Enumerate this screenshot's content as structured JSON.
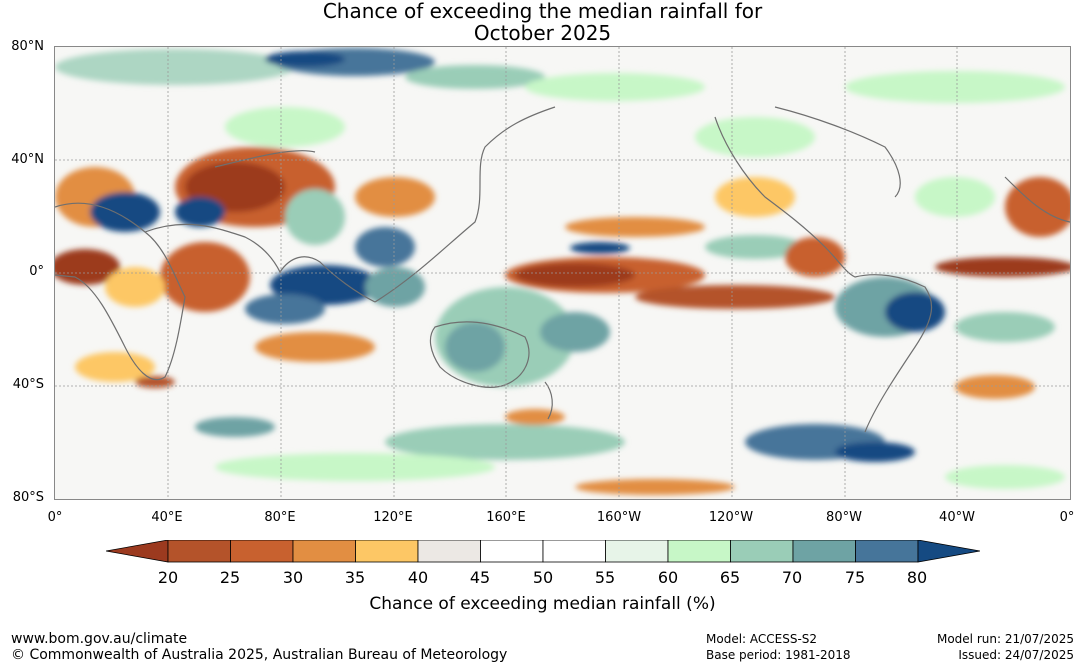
{
  "title": {
    "line1": "Chance of exceeding the median rainfall for",
    "line2": "October 2025"
  },
  "latitude_labels": [
    "80°N",
    "40°N",
    "0°",
    "40°S",
    "80°S"
  ],
  "longitude_labels": [
    "0°",
    "40°E",
    "80°E",
    "120°E",
    "160°E",
    "160°W",
    "120°W",
    "80°W",
    "40°W",
    "0°"
  ],
  "colorbar": {
    "ticks": [
      "20",
      "25",
      "30",
      "35",
      "40",
      "45",
      "50",
      "55",
      "60",
      "65",
      "70",
      "75",
      "80"
    ],
    "colors": [
      "#9c3a1f",
      "#b4532a",
      "#c8612f",
      "#e28e42",
      "#fdc765",
      "#ece8e4",
      "#ffffff",
      "#ffffff",
      "#e7f4e8",
      "#c7f7c7",
      "#9acdb7",
      "#6ea3a4",
      "#46759a",
      "#154a82"
    ],
    "label": "Chance of exceeding median rainfall (%)"
  },
  "footer": {
    "website": "www.bom.gov.au/climate",
    "copyright": "© Commonwealth of Australia 2025, Australian Bureau of Meteorology",
    "model": "Model: ACCESS-S2",
    "base_period": "Base period: 1981-2018",
    "model_run": "Model run: 21/07/2025",
    "issued": "Issued: 24/07/2025"
  }
}
